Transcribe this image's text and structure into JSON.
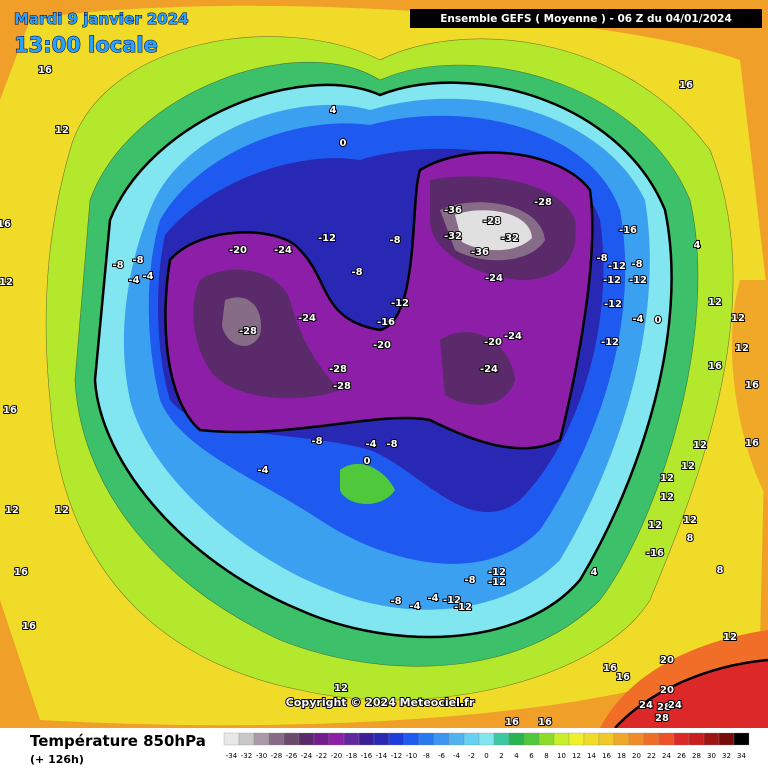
{
  "header": {
    "date": "Mardi 9 janvier 2024",
    "time": "13:00 locale",
    "model": "Ensemble GEFS ( Moyenne ) - 06 Z du 04/01/2024"
  },
  "map": {
    "copyright": "Copyright © 2024 Meteociel.fr",
    "contour_labels": [
      16,
      12,
      16,
      4,
      0,
      -20,
      -24,
      -12,
      -8,
      -8,
      -12,
      -16,
      -20,
      -24,
      -28,
      -28,
      -28,
      -24,
      -24,
      -20,
      -24,
      -28,
      -36,
      -28,
      -32,
      -32,
      -36,
      -16,
      -8,
      -12,
      -8,
      -12,
      -12,
      -12,
      -4,
      -12,
      0,
      -8,
      -8,
      -4,
      -4,
      -8,
      -4,
      -8,
      0,
      -4,
      -12,
      -12,
      -8,
      -8,
      -4,
      -4,
      -12,
      -12,
      -16,
      12,
      12,
      12,
      12,
      12,
      12,
      8,
      8,
      4,
      4,
      12,
      12,
      12,
      16,
      16,
      16,
      12,
      20,
      20,
      24,
      28,
      24,
      28,
      16,
      16,
      12,
      16,
      16,
      16,
      16,
      12,
      12,
      16,
      12,
      16
    ]
  },
  "legend": {
    "title": "Température 850hPa",
    "lead_time": "(+ 126h)",
    "scale": {
      "values": [
        -34,
        -32,
        -30,
        -28,
        -26,
        -24,
        -22,
        -20,
        -18,
        -16,
        -14,
        -12,
        -10,
        -8,
        -6,
        -4,
        -2,
        0,
        2,
        4,
        6,
        8,
        10,
        12,
        14,
        16,
        18,
        20,
        22,
        24,
        26,
        28,
        30,
        32,
        34
      ],
      "colors": [
        "#e8e8e8",
        "#c8c8c8",
        "#a89aa8",
        "#866c86",
        "#6c4a6c",
        "#5a2a6a",
        "#721e8c",
        "#8c1ea8",
        "#64289e",
        "#3c1e96",
        "#2828b4",
        "#1e3cdc",
        "#1e5af0",
        "#2878f0",
        "#3c96f0",
        "#50b4f0",
        "#64d2f0",
        "#82e6f0",
        "#3cc8a0",
        "#28b450",
        "#50c83c",
        "#8cdc28",
        "#c8f028",
        "#f0f028",
        "#f0dc28",
        "#f0c828",
        "#f0a828",
        "#f08c28",
        "#f06e28",
        "#f05028",
        "#dc2828",
        "#c81e1e",
        "#a01414",
        "#780a0a",
        "#000000"
      ]
    }
  }
}
